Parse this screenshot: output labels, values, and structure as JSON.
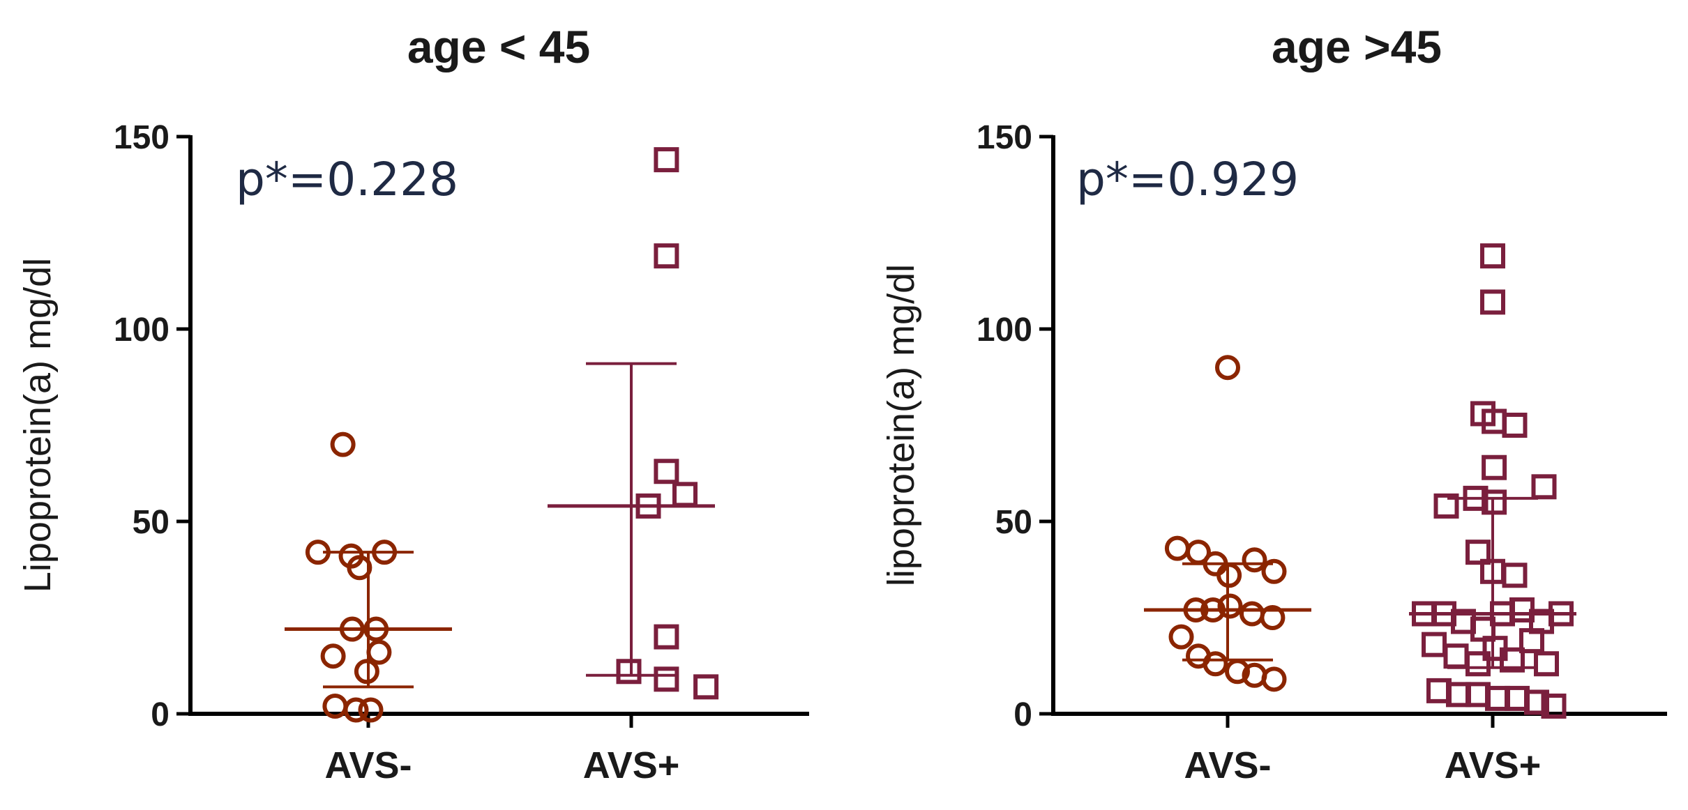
{
  "chart_data": [
    {
      "type": "scatter",
      "title": "age < 45",
      "ylabel": "Lipoprotein(a) mg/dl",
      "xlabel": "",
      "ylim": [
        0,
        150
      ],
      "yticks": [
        "0",
        "50",
        "100",
        "150"
      ],
      "categories": [
        "AVS-",
        "AVS+"
      ],
      "annotation": "p*=0.228",
      "series": [
        {
          "name": "AVS-",
          "marker": "circle",
          "color": "#8b2500",
          "points": [
            {
              "x": -0.52,
              "y": 70
            },
            {
              "x": -1.03,
              "y": 42
            },
            {
              "x": -0.35,
              "y": 41
            },
            {
              "x": -0.18,
              "y": 38
            },
            {
              "x": 0.33,
              "y": 42
            },
            {
              "x": -0.33,
              "y": 22
            },
            {
              "x": 0.16,
              "y": 22
            },
            {
              "x": -0.72,
              "y": 15
            },
            {
              "x": -0.03,
              "y": 11
            },
            {
              "x": 0.22,
              "y": 16
            },
            {
              "x": -0.68,
              "y": 2
            },
            {
              "x": -0.25,
              "y": 1
            },
            {
              "x": 0.05,
              "y": 1
            }
          ],
          "median": 22,
          "iqr": [
            7,
            42
          ]
        },
        {
          "name": "AVS+",
          "marker": "square",
          "color": "#7a1f3d",
          "points": [
            {
              "x": 0.72,
              "y": 144
            },
            {
              "x": 0.72,
              "y": 119
            },
            {
              "x": 0.72,
              "y": 63
            },
            {
              "x": 0.35,
              "y": 54
            },
            {
              "x": 1.1,
              "y": 57
            },
            {
              "x": 0.72,
              "y": 20
            },
            {
              "x": -0.05,
              "y": 11
            },
            {
              "x": 0.72,
              "y": 9
            },
            {
              "x": 1.53,
              "y": 7
            }
          ],
          "median": 54,
          "iqr": [
            10,
            91
          ]
        }
      ]
    },
    {
      "type": "scatter",
      "title": "age >45",
      "ylabel": "lipoprotein(a) mg/dl",
      "xlabel": "",
      "ylim": [
        0,
        150
      ],
      "yticks": [
        "0",
        "50",
        "100",
        "150"
      ],
      "categories": [
        "AVS-",
        "AVS+"
      ],
      "annotation": "p*=0.929",
      "series": [
        {
          "name": "AVS-",
          "marker": "circle",
          "color": "#8b2500",
          "points": [
            {
              "x": 0.0,
              "y": 90
            },
            {
              "x": -1.03,
              "y": 43
            },
            {
              "x": -0.6,
              "y": 42
            },
            {
              "x": -0.25,
              "y": 39
            },
            {
              "x": 0.03,
              "y": 36
            },
            {
              "x": 0.55,
              "y": 40
            },
            {
              "x": 0.95,
              "y": 37
            },
            {
              "x": -0.65,
              "y": 27
            },
            {
              "x": -0.3,
              "y": 27
            },
            {
              "x": 0.05,
              "y": 28
            },
            {
              "x": 0.5,
              "y": 26
            },
            {
              "x": 0.92,
              "y": 25
            },
            {
              "x": -0.95,
              "y": 20
            },
            {
              "x": -0.6,
              "y": 15
            },
            {
              "x": -0.25,
              "y": 13
            },
            {
              "x": 0.2,
              "y": 11
            },
            {
              "x": 0.55,
              "y": 10
            },
            {
              "x": 0.95,
              "y": 9
            }
          ],
          "median": 27,
          "iqr": [
            14,
            39
          ]
        },
        {
          "name": "AVS+",
          "marker": "square",
          "color": "#7a1f3d",
          "points": [
            {
              "x": 0.0,
              "y": 119
            },
            {
              "x": 0.0,
              "y": 107
            },
            {
              "x": -0.2,
              "y": 78
            },
            {
              "x": 0.03,
              "y": 76
            },
            {
              "x": 0.45,
              "y": 75
            },
            {
              "x": 0.03,
              "y": 64
            },
            {
              "x": 1.05,
              "y": 59
            },
            {
              "x": -0.95,
              "y": 54
            },
            {
              "x": -0.35,
              "y": 56
            },
            {
              "x": 0.03,
              "y": 55
            },
            {
              "x": -0.3,
              "y": 42
            },
            {
              "x": 0.0,
              "y": 37
            },
            {
              "x": 0.45,
              "y": 36
            },
            {
              "x": -1.4,
              "y": 26
            },
            {
              "x": -1.0,
              "y": 26
            },
            {
              "x": -0.6,
              "y": 24
            },
            {
              "x": -0.2,
              "y": 22
            },
            {
              "x": 0.2,
              "y": 26
            },
            {
              "x": 0.6,
              "y": 27
            },
            {
              "x": 1.0,
              "y": 24
            },
            {
              "x": 1.4,
              "y": 26
            },
            {
              "x": -1.2,
              "y": 18
            },
            {
              "x": -0.75,
              "y": 15
            },
            {
              "x": -0.3,
              "y": 13
            },
            {
              "x": 0.05,
              "y": 17
            },
            {
              "x": 0.4,
              "y": 14
            },
            {
              "x": 0.8,
              "y": 19
            },
            {
              "x": 1.1,
              "y": 13
            },
            {
              "x": -1.1,
              "y": 6
            },
            {
              "x": -0.7,
              "y": 5
            },
            {
              "x": -0.3,
              "y": 5
            },
            {
              "x": 0.1,
              "y": 4
            },
            {
              "x": 0.5,
              "y": 4
            },
            {
              "x": 0.9,
              "y": 3
            },
            {
              "x": 1.25,
              "y": 2
            }
          ],
          "median": 26,
          "iqr": [
            12,
            56
          ]
        }
      ]
    }
  ]
}
